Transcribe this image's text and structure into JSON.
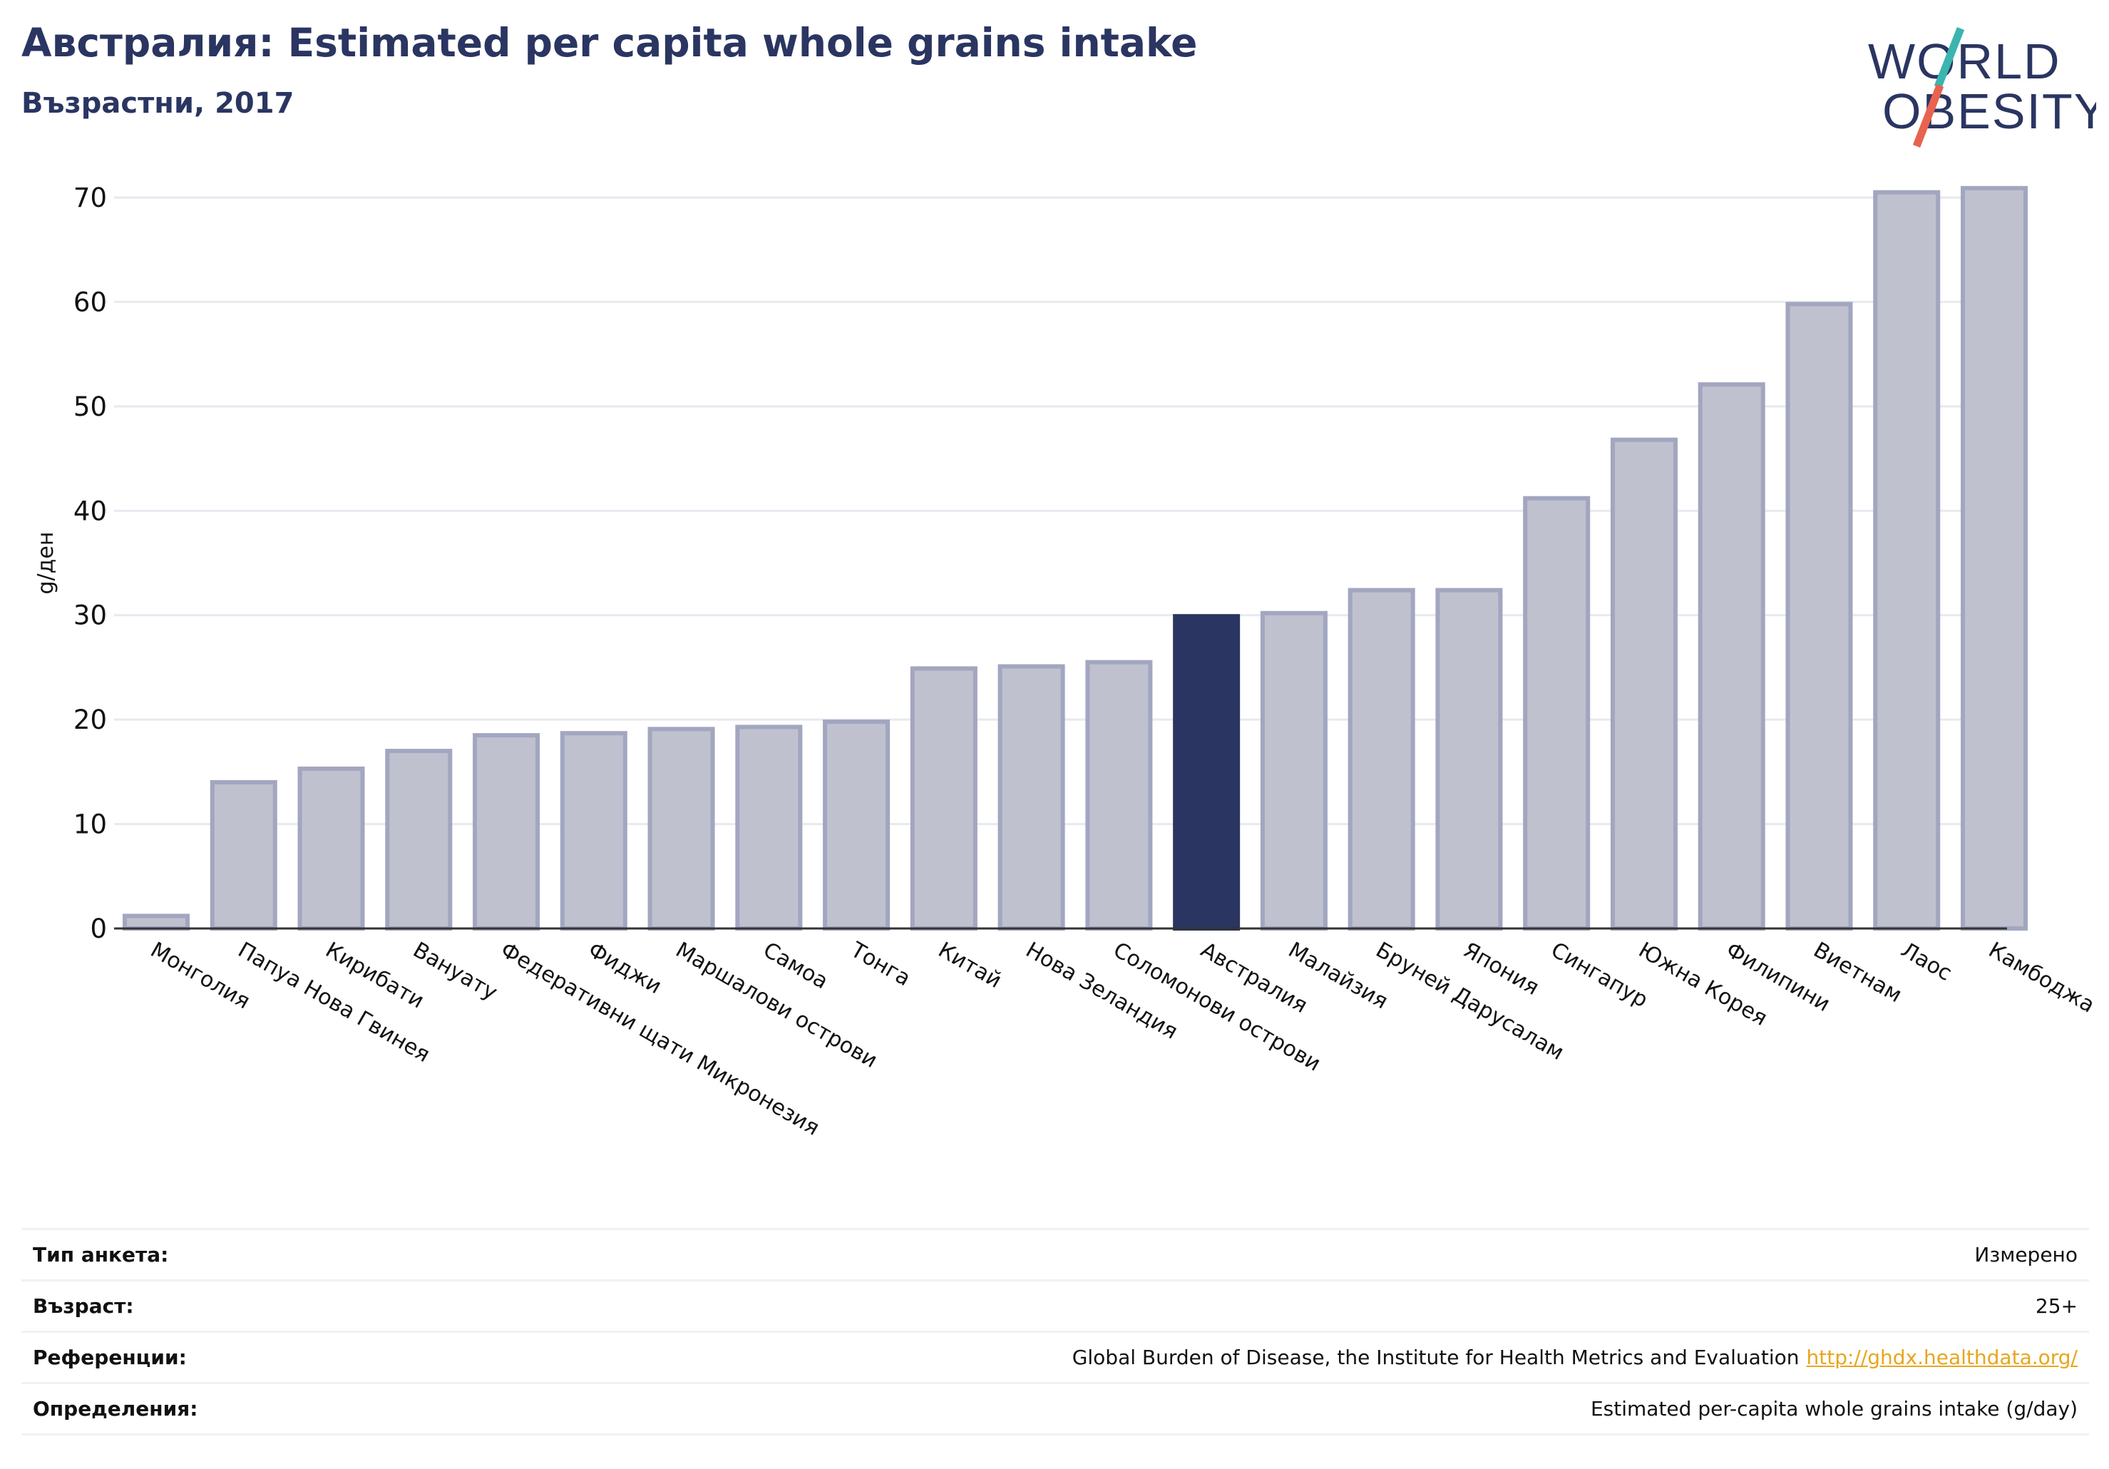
{
  "header": {
    "title": "Австралия: Estimated per capita whole grains intake",
    "subtitle": "Възрастни, 2017"
  },
  "logo": {
    "line1": "WORLD",
    "line2": "OBESITY",
    "colors": {
      "text": "#2a3561",
      "slash_teal": "#3ab5b0",
      "slash_red": "#e8624f"
    }
  },
  "chart_data": {
    "type": "bar",
    "ylabel": "g/ден",
    "ylim": [
      0,
      72
    ],
    "yticks": [
      0,
      10,
      20,
      30,
      40,
      50,
      60,
      70
    ],
    "grid": true,
    "highlight": "Австралия",
    "colors": {
      "bar": "#bfc1cf",
      "bar_edge": "#a2a6bf",
      "highlight": "#2a3561"
    },
    "categories": [
      "Монголия",
      "Папуа Нова Гвинея",
      "Кирибати",
      "Вануату",
      "Федеративни щати Микронезия",
      "Фиджи",
      "Маршалови острови",
      "Самоа",
      "Тонга",
      "Китай",
      "Нова Зеландия",
      "Соломонови острови",
      "Австралия",
      "Малайзия",
      "Бруней Дарусалам",
      "Япония",
      "Сингапур",
      "Южна Корея",
      "Филипини",
      "Виетнам",
      "Лаос",
      "Камбоджа"
    ],
    "values": [
      1.2,
      14.0,
      15.3,
      17.0,
      18.5,
      18.7,
      19.1,
      19.3,
      19.8,
      24.9,
      25.1,
      25.5,
      29.9,
      30.2,
      32.4,
      32.4,
      41.2,
      46.8,
      52.1,
      59.8,
      70.5,
      70.9
    ]
  },
  "info": {
    "rows": [
      {
        "label": "Тип анкета:",
        "value": "Измерено"
      },
      {
        "label": "Възраст:",
        "value": "25+"
      },
      {
        "label": "Референции:",
        "value": "Global Burden of Disease, the Institute for Health Metrics and Evaluation",
        "link": "http://ghdx.healthdata.org/"
      },
      {
        "label": "Определения:",
        "value": "Estimated per-capita whole grains intake (g/day)"
      }
    ]
  }
}
